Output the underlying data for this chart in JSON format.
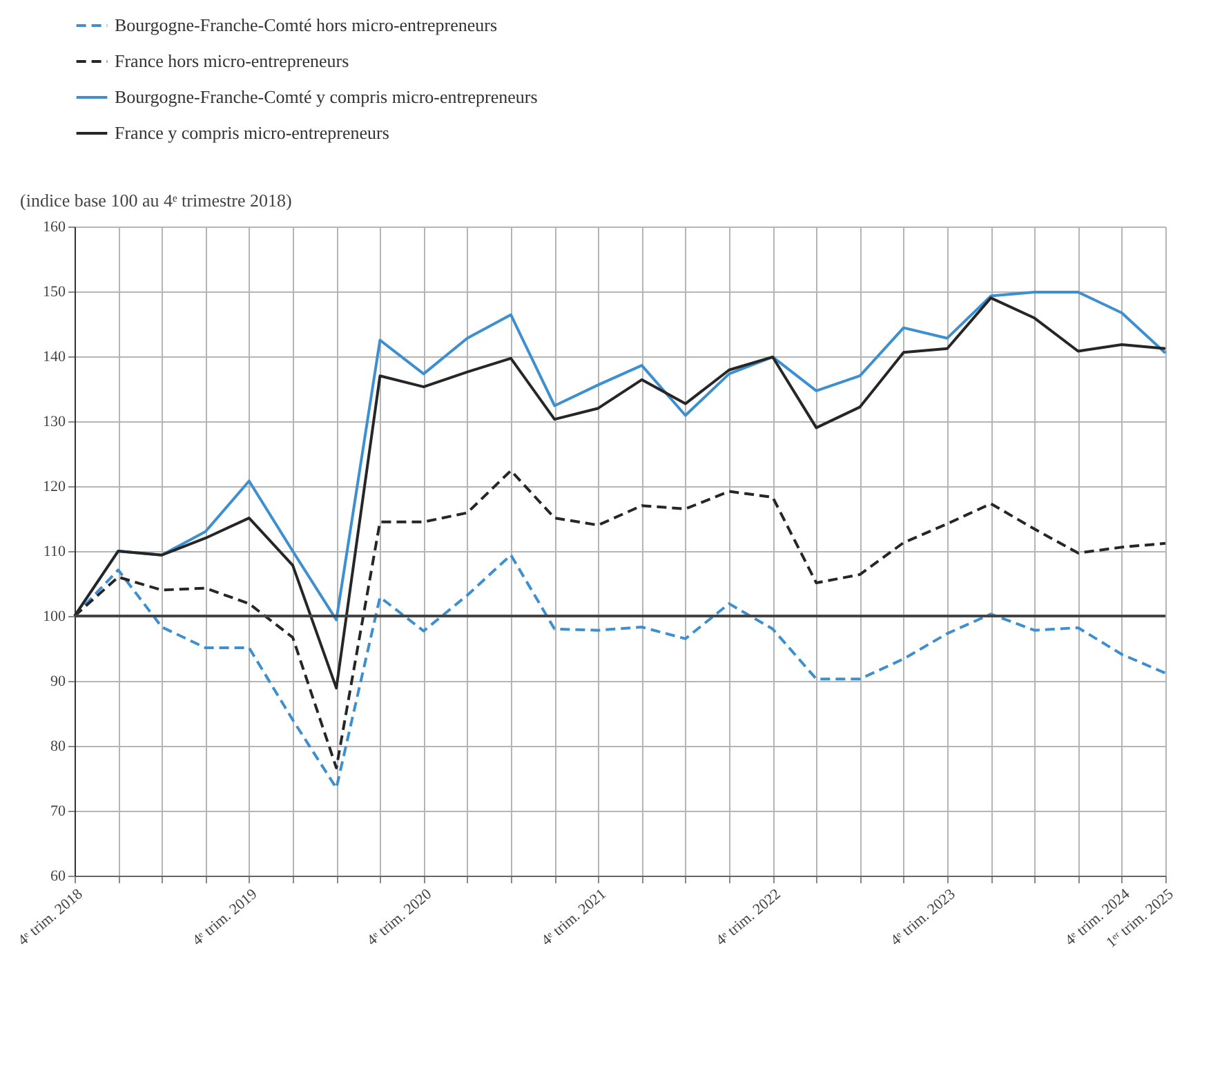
{
  "chart_data": {
    "type": "line",
    "ylabel": "(indice base 100 au 4ᵉ trimestre 2018)",
    "categories": [
      "4ᵉ trim. 2018",
      null,
      null,
      null,
      "4ᵉ trim. 2019",
      null,
      null,
      null,
      "4ᵉ trim. 2020",
      null,
      null,
      null,
      "4ᵉ trim. 2021",
      null,
      null,
      null,
      "4ᵉ trim. 2022",
      null,
      null,
      null,
      "4ᵉ trim. 2023",
      null,
      null,
      null,
      "4ᵉ trim. 2024",
      "1ᵉʳ trim. 2025"
    ],
    "series": [
      {
        "name": "Bourgogne-Franche-Comté hors micro-entrepreneurs",
        "color": "#3d8fd0",
        "line_style": "dashed",
        "values": [
          100,
          107.1,
          98.3,
          95.1,
          95.1,
          84,
          73.5,
          102.9,
          97.7,
          103.2,
          109.4,
          98,
          97.8,
          98.3,
          96.5,
          101.9,
          98,
          90.3,
          90.3,
          93.4,
          97.3,
          100.3,
          97.8,
          98.2,
          94.1,
          91.2
        ]
      },
      {
        "name": "France hors micro-entrepreneurs",
        "color": "#262626",
        "line_style": "dashed",
        "values": [
          100,
          106,
          104,
          104.3,
          101.9,
          96.7,
          76.6,
          114.5,
          114.5,
          115.9,
          122.4,
          115.1,
          114,
          117,
          116.5,
          119.2,
          118.3,
          105.1,
          106.4,
          111.3,
          114.2,
          117.3,
          113.4,
          109.7,
          110.6,
          111.2
        ]
      },
      {
        "name": "Bourgogne-Franche-Comté y compris micro-entrepreneurs",
        "color": "#3d8fd0",
        "line_style": "solid",
        "values": [
          100,
          110,
          109.4,
          113,
          120.8,
          110,
          99.4,
          142.5,
          137.3,
          142.8,
          146.4,
          132.4,
          135.6,
          138.6,
          130.9,
          137.3,
          139.9,
          134.7,
          137,
          144.4,
          142.8,
          149.3,
          149.9,
          149.9,
          146.7,
          140.5
        ]
      },
      {
        "name": "France y compris micro-entrepreneurs",
        "color": "#262626",
        "line_style": "solid",
        "values": [
          100,
          110,
          109.4,
          112,
          115.1,
          107.8,
          88.9,
          137,
          135.3,
          137.6,
          139.7,
          130.3,
          132,
          136.4,
          132.7,
          137.9,
          139.9,
          129,
          132.2,
          140.6,
          141.2,
          149,
          145.9,
          140.8,
          141.8,
          141.2
        ]
      }
    ],
    "ylim": [
      60,
      160
    ],
    "yticks": [
      60,
      70,
      80,
      90,
      100,
      110,
      120,
      130,
      140,
      150,
      160
    ],
    "ref_lines": [
      {
        "axis": "y",
        "value": 100
      }
    ],
    "grid": true,
    "legend": "top left",
    "marker": "none"
  }
}
